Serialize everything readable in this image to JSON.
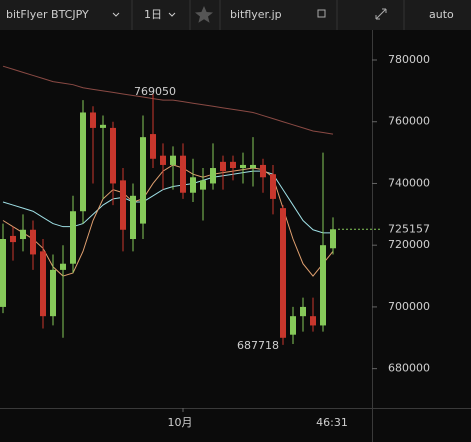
{
  "toolbar": {
    "symbol": "bitFlyer BTCJPY",
    "interval": "1日",
    "site": "bitflyer.jp",
    "scale": "auto"
  },
  "footer": {
    "countdown": "46:31"
  },
  "chart_data": {
    "type": "candlestick",
    "categories": [
      null,
      null,
      null,
      null,
      null,
      null,
      null,
      null,
      null,
      null,
      null,
      null,
      null,
      null,
      null,
      null,
      null,
      null,
      "10月",
      null,
      null,
      null,
      null,
      null,
      null,
      null,
      null,
      null,
      null,
      null,
      null,
      null,
      null,
      null
    ],
    "open": [
      700000,
      723000,
      722000,
      725000,
      718000,
      697000,
      712000,
      714000,
      731000,
      763000,
      758000,
      758000,
      741000,
      722000,
      727000,
      756000,
      749000,
      746000,
      749000,
      737000,
      738000,
      740000,
      747000,
      747000,
      745000,
      745000,
      746000,
      743000,
      732000,
      691000,
      697000,
      697000,
      694000,
      719000
    ],
    "high": [
      727000,
      726000,
      730000,
      728000,
      722000,
      717000,
      720000,
      736000,
      767000,
      765000,
      762000,
      760000,
      745000,
      740000,
      762000,
      769050,
      753000,
      752000,
      753000,
      748000,
      745000,
      753000,
      749000,
      749000,
      750000,
      755000,
      748000,
      746000,
      733000,
      700000,
      703000,
      703000,
      750000,
      729000
    ],
    "low": [
      698000,
      715000,
      718000,
      712000,
      693000,
      694000,
      690000,
      711000,
      727000,
      740000,
      735000,
      733000,
      718000,
      718000,
      722000,
      745000,
      738000,
      738000,
      735000,
      734000,
      728000,
      738000,
      738000,
      741000,
      740000,
      739000,
      737000,
      730000,
      687718,
      688000,
      692000,
      692000,
      692000,
      717000
    ],
    "close": [
      722000,
      721000,
      725000,
      717000,
      697000,
      712000,
      714000,
      731000,
      763000,
      758000,
      759000,
      740000,
      725000,
      736000,
      755000,
      748000,
      746000,
      749000,
      737000,
      742000,
      741000,
      745000,
      744000,
      745000,
      746000,
      746000,
      742000,
      735000,
      690000,
      697000,
      700000,
      694000,
      720000,
      725157
    ],
    "up_color": "#86c95a",
    "down_color": "#c8372d",
    "series": [
      {
        "color": "#8a4a44",
        "values": [
          778000,
          777000,
          776000,
          775000,
          774000,
          773000,
          772500,
          772000,
          771000,
          770500,
          770000,
          769500,
          769000,
          768500,
          768000,
          767500,
          767000,
          767000,
          766500,
          766000,
          765500,
          765000,
          764500,
          764000,
          763500,
          763000,
          762000,
          761000,
          760000,
          759000,
          758000,
          757000,
          756500,
          756000
        ]
      },
      {
        "color": "#9fe0e6",
        "values": [
          734000,
          733000,
          732000,
          731000,
          729000,
          727000,
          726000,
          726000,
          727000,
          730000,
          733000,
          735000,
          735500,
          734000,
          734000,
          736000,
          738000,
          739000,
          739500,
          740000,
          741000,
          742000,
          742500,
          743000,
          743500,
          744000,
          744000,
          743000,
          738000,
          733000,
          728000,
          725000,
          724000,
          724000
        ]
      },
      {
        "color": "#e0a070",
        "values": [
          728000,
          726000,
          724000,
          722000,
          719000,
          713000,
          710000,
          711000,
          718000,
          728000,
          735000,
          738000,
          737000,
          734000,
          735000,
          740000,
          744000,
          746000,
          745000,
          743000,
          742000,
          743000,
          743500,
          744000,
          744500,
          745000,
          744500,
          742000,
          732000,
          722000,
          714000,
          710000,
          714000,
          718000
        ]
      }
    ],
    "ylim": [
      667250,
      789720
    ],
    "yticks": [
      680000,
      700000,
      720000,
      740000,
      760000,
      780000
    ]
  }
}
